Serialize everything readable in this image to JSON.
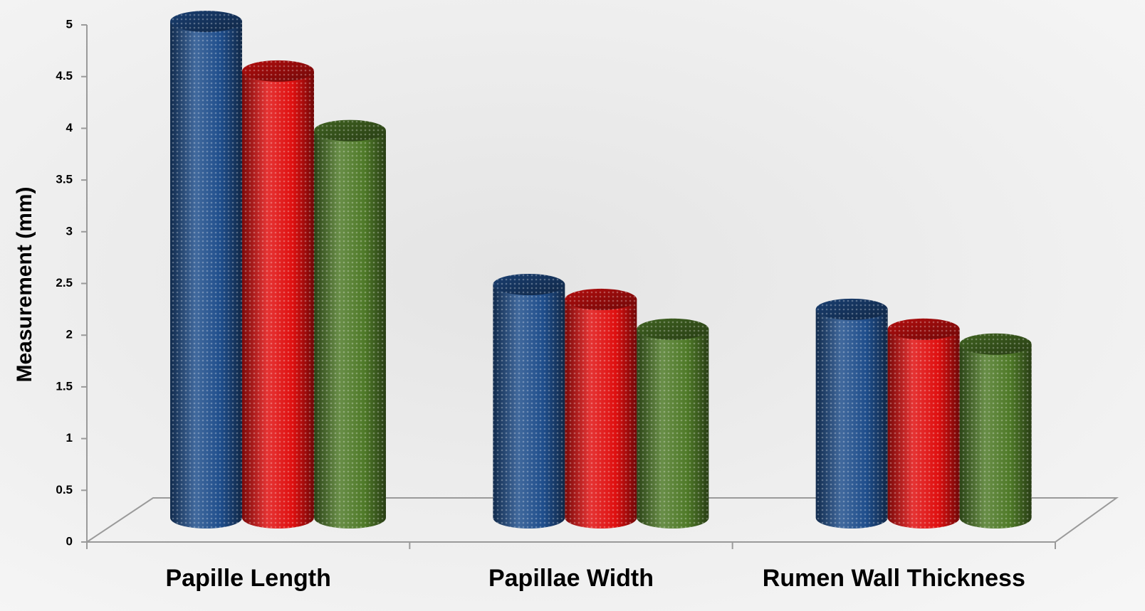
{
  "chart_data": {
    "type": "cylinder-bar",
    "y_axis_label": "Measurement (mm)",
    "categories": [
      "Papille Length",
      "Papillae Width",
      "Rumen Wall Thickness"
    ],
    "series": [
      {
        "color": "#1f4e8c",
        "values": [
          5.0,
          2.35,
          2.1
        ]
      },
      {
        "color": "#e01010",
        "values": [
          4.5,
          2.2,
          1.9
        ]
      },
      {
        "color": "#4f7a28",
        "values": [
          3.9,
          1.9,
          1.75
        ]
      }
    ],
    "ylim": [
      0,
      5
    ],
    "yticks": [
      0,
      0.5,
      1,
      1.5,
      2,
      2.5,
      3,
      3.5,
      4,
      4.5,
      5
    ]
  }
}
